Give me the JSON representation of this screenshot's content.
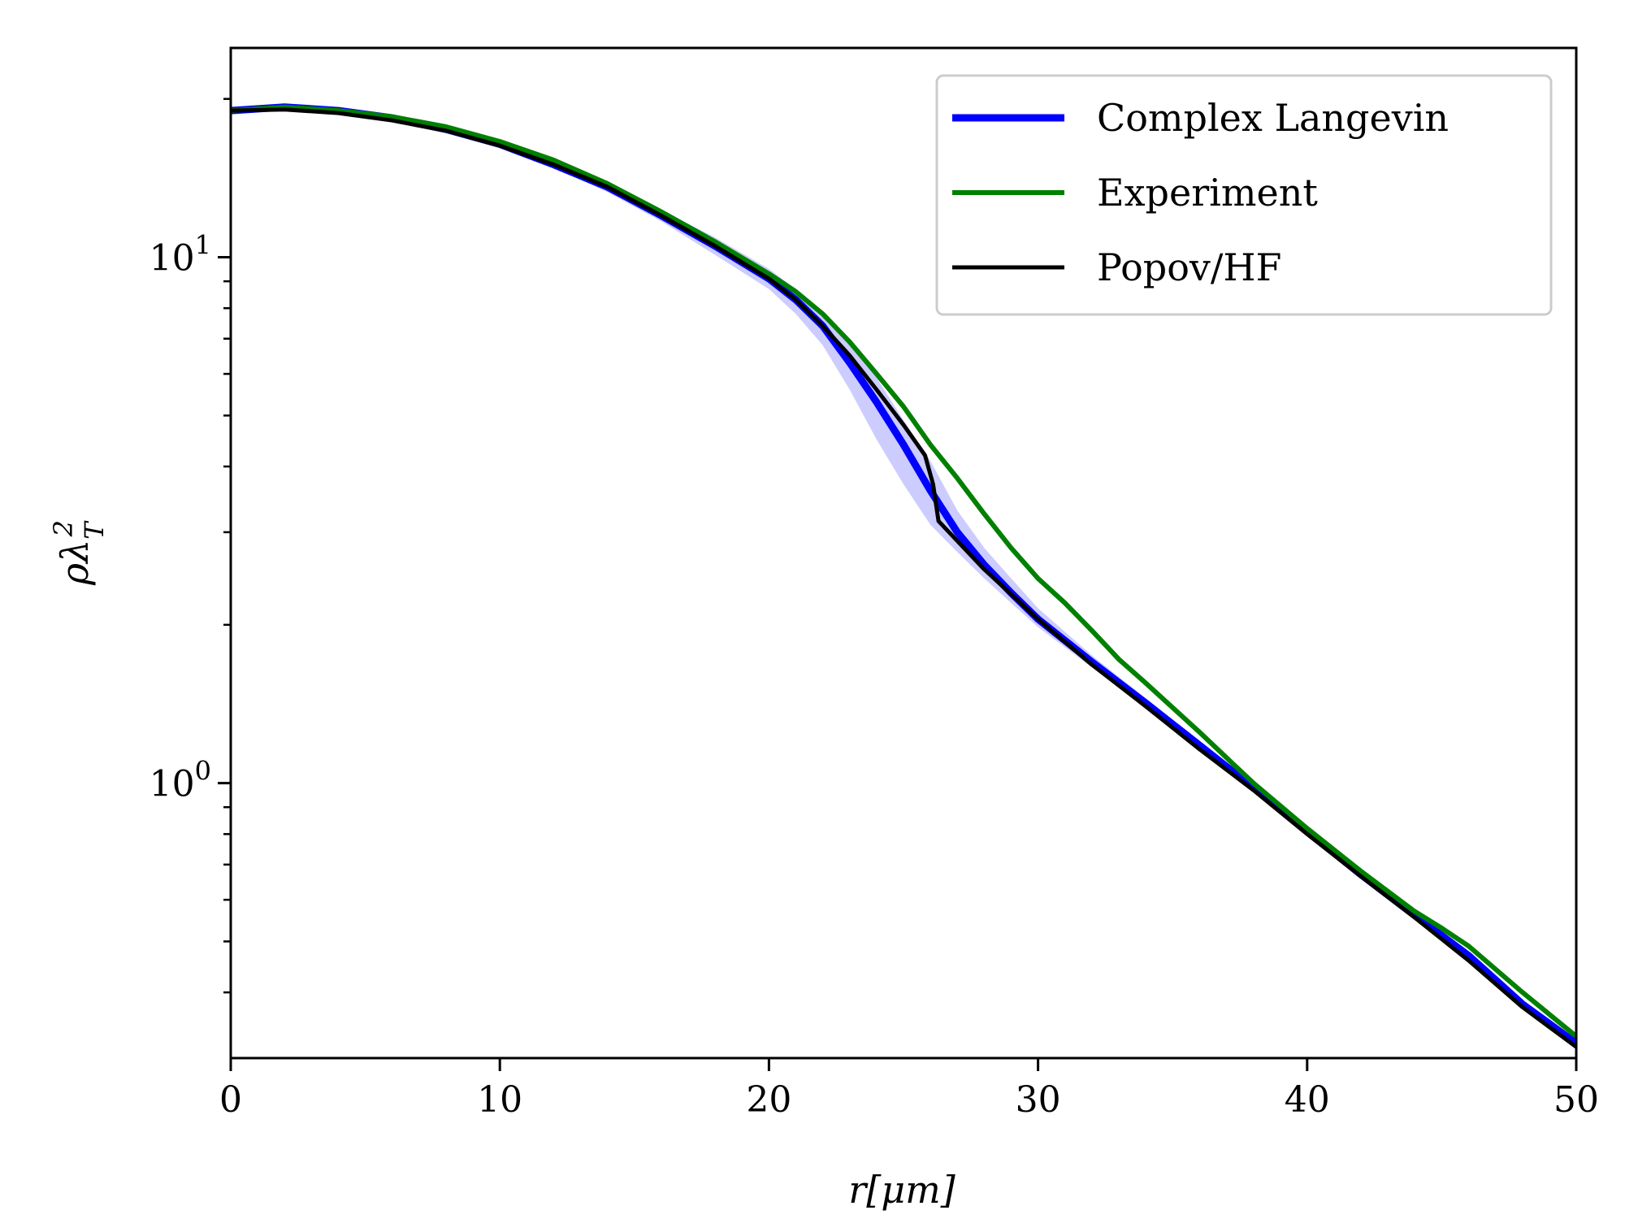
{
  "chart_data": {
    "type": "line",
    "xlabel": "r[μm]",
    "ylabel": "ρλ_T^2",
    "xlim": [
      0,
      50
    ],
    "ylim": [
      0.3,
      25
    ],
    "yscale": "log",
    "x_ticks": [
      0,
      10,
      20,
      30,
      40,
      50
    ],
    "y_major_ticks": [
      {
        "value": 1,
        "mantissa": "10",
        "exp": "0"
      },
      {
        "value": 10,
        "mantissa": "10",
        "exp": "1"
      }
    ],
    "y_minor_ticks": [
      0.4,
      0.5,
      0.6,
      0.7,
      0.8,
      0.9,
      2,
      3,
      4,
      5,
      6,
      7,
      8,
      9,
      20
    ],
    "grid": false,
    "legend_position": "top-right",
    "series": [
      {
        "name": "Complex Langevin",
        "color": "#0000ff",
        "x": [
          0,
          2,
          4,
          6,
          8,
          10,
          12,
          14,
          16,
          18,
          20,
          21,
          22,
          23,
          24,
          25,
          26,
          27,
          28,
          29,
          30,
          32,
          34,
          36,
          38,
          40,
          42,
          44,
          46,
          48,
          50
        ],
        "y": [
          19.0,
          19.3,
          19.0,
          18.4,
          17.5,
          16.4,
          15.0,
          13.6,
          12.0,
          10.5,
          9.1,
          8.3,
          7.4,
          6.3,
          5.3,
          4.4,
          3.6,
          3.0,
          2.6,
          2.3,
          2.05,
          1.7,
          1.42,
          1.18,
          0.98,
          0.81,
          0.67,
          0.56,
          0.47,
          0.38,
          0.32
        ],
        "band_lower": [
          18.8,
          19.1,
          18.8,
          18.2,
          17.3,
          16.2,
          14.8,
          13.3,
          11.7,
          10.1,
          8.7,
          7.8,
          6.8,
          5.6,
          4.5,
          3.7,
          3.1,
          2.75,
          2.45,
          2.2,
          1.98,
          1.66,
          1.4,
          1.17,
          0.97,
          0.8,
          0.665,
          0.555,
          0.465,
          0.377,
          0.318
        ],
        "band_upper": [
          19.2,
          19.5,
          19.2,
          18.6,
          17.7,
          16.6,
          15.2,
          13.9,
          12.3,
          10.9,
          9.5,
          8.7,
          7.9,
          6.9,
          5.9,
          4.9,
          4.1,
          3.3,
          2.8,
          2.45,
          2.15,
          1.75,
          1.45,
          1.2,
          0.99,
          0.82,
          0.675,
          0.565,
          0.475,
          0.385,
          0.322
        ]
      },
      {
        "name": "Experiment",
        "color": "#008000",
        "x": [
          0,
          2,
          4,
          6,
          8,
          10,
          12,
          14,
          16,
          18,
          20,
          21,
          22,
          23,
          24,
          25,
          26,
          27,
          28,
          29,
          30,
          31,
          32,
          33,
          34,
          36,
          38,
          40,
          42,
          44,
          45,
          46,
          48,
          50
        ],
        "y": [
          19.0,
          19.3,
          19.0,
          18.5,
          17.7,
          16.6,
          15.3,
          13.8,
          12.2,
          10.7,
          9.3,
          8.6,
          7.8,
          6.9,
          6.0,
          5.2,
          4.4,
          3.8,
          3.25,
          2.8,
          2.45,
          2.2,
          1.95,
          1.72,
          1.55,
          1.25,
          1.0,
          0.82,
          0.68,
          0.57,
          0.53,
          0.49,
          0.4,
          0.33
        ]
      },
      {
        "name": "Popov/HF",
        "color": "#000000",
        "x": [
          0,
          2,
          4,
          6,
          8,
          10,
          12,
          14,
          16,
          18,
          20,
          21,
          22,
          23,
          24,
          25,
          25.8,
          26.1,
          26.3,
          28,
          30,
          32,
          34,
          36,
          38,
          40,
          42,
          44,
          46,
          48,
          50
        ],
        "y": [
          19.0,
          19.1,
          18.8,
          18.2,
          17.4,
          16.3,
          15.0,
          13.6,
          12.0,
          10.5,
          9.1,
          8.3,
          7.4,
          6.5,
          5.6,
          4.8,
          4.2,
          3.7,
          3.15,
          2.55,
          2.05,
          1.68,
          1.4,
          1.16,
          0.97,
          0.8,
          0.665,
          0.555,
          0.46,
          0.375,
          0.315
        ]
      }
    ]
  }
}
